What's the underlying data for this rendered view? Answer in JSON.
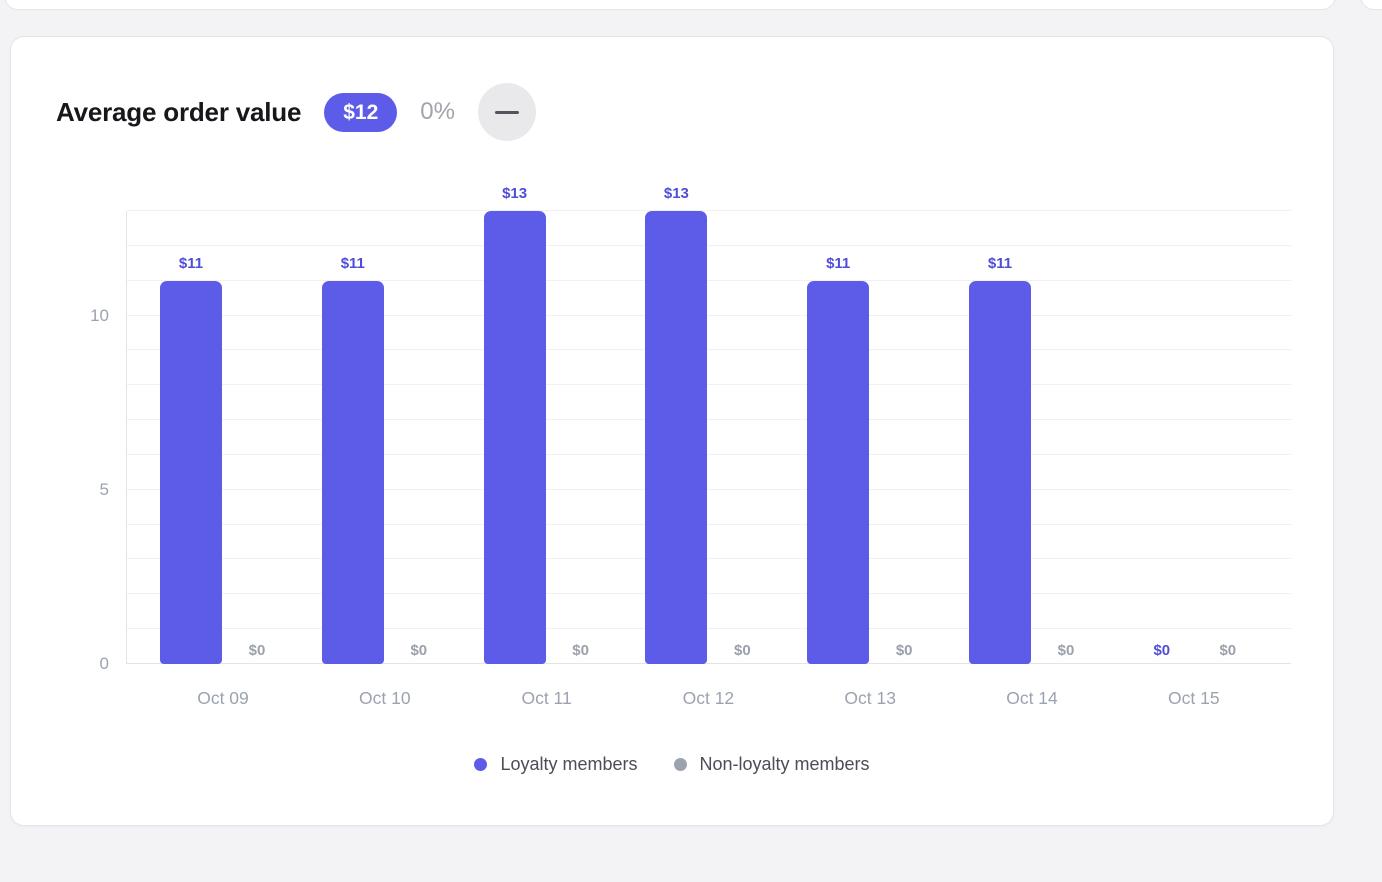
{
  "page": {
    "background": "#f3f3f6"
  },
  "header": {
    "title": "Average order value",
    "badge_value": "$12",
    "change_percent": "0%",
    "collapse_icon": "minus-icon"
  },
  "colors": {
    "accent": "#5d5ce9",
    "accent_label": "#504ed8",
    "muted_gray": "#9ca3af",
    "badge_bg": "#5d5ce9",
    "badge_text": "#ffffff",
    "title_text": "#17171c",
    "card_bg": "#ffffff",
    "card_border": "#e4e4e9"
  },
  "chart_data": {
    "type": "bar",
    "title": "Average order value",
    "categories": [
      "Oct 09",
      "Oct 10",
      "Oct 11",
      "Oct 12",
      "Oct 13",
      "Oct 14",
      "Oct 15"
    ],
    "series": [
      {
        "name": "Loyalty members",
        "color": "#5d5ce9",
        "values": [
          11,
          11,
          13,
          13,
          11,
          11,
          0
        ],
        "labels": [
          "$11",
          "$11",
          "$13",
          "$13",
          "$11",
          "$11",
          "$0"
        ]
      },
      {
        "name": "Non-loyalty members",
        "color": "#9ca3af",
        "values": [
          0,
          0,
          0,
          0,
          0,
          0,
          0
        ],
        "labels": [
          "$0",
          "$0",
          "$0",
          "$0",
          "$0",
          "$0",
          "$0"
        ]
      }
    ],
    "xlabel": "",
    "ylabel": "",
    "y_ticks": [
      0,
      5,
      10
    ],
    "ylim": [
      0,
      13
    ],
    "grid": true,
    "legend_position": "bottom"
  }
}
